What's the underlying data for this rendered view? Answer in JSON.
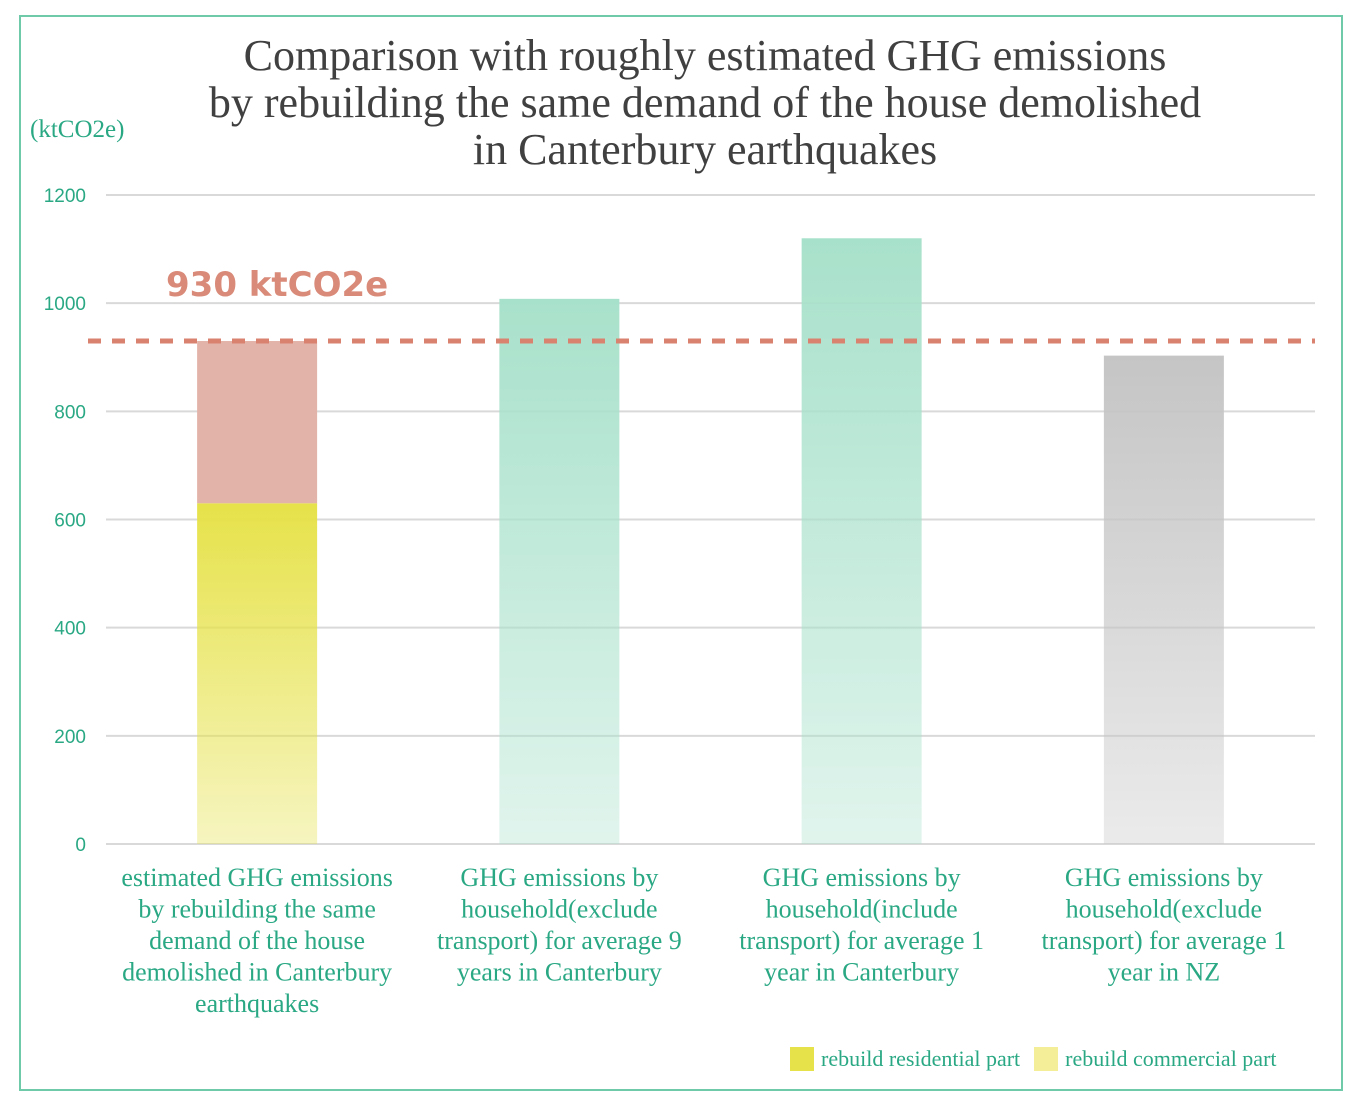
{
  "chart_data": {
    "type": "bar",
    "title_lines": [
      "Comparison with roughly estimated GHG emissions",
      "by rebuilding the same demand of the house demolished",
      "in Canterbury earthquakes"
    ],
    "ylabel": "(ktCO2e)",
    "ylim": [
      0,
      1200
    ],
    "yticks": [
      "0",
      "200",
      "400",
      "600",
      "800",
      "1000",
      "1200"
    ],
    "grid": true,
    "categories": [
      [
        "estimated GHG emissions",
        "by rebuilding the same",
        "demand of the house",
        "demolished in Canterbury",
        "earthquakes"
      ],
      [
        "GHG emissions by",
        "household(exclude",
        "transport) for average 9",
        "years in Canterbury"
      ],
      [
        "GHG emissions by",
        "household(include",
        "transport) for average 1",
        "year in Canterbury"
      ],
      [
        "GHG emissions by",
        "household(exclude",
        "transport) for average 1",
        "year in NZ"
      ]
    ],
    "series": [
      {
        "name": "rebuild residential part",
        "values": [
          630,
          null,
          null,
          null
        ],
        "color": "#e6e24a"
      },
      {
        "name": "rebuild commercial part",
        "values": [
          300,
          null,
          null,
          null
        ],
        "color": "#e2b3a8"
      },
      {
        "values": [
          null,
          1008,
          1120,
          903
        ],
        "colors": [
          null,
          "#a8e1cb",
          "#a8e1cb",
          "#c5c5c5"
        ]
      }
    ],
    "reference_line": {
      "value": 930,
      "label": "930 ktCO2e",
      "style": "dashed",
      "color": "#d9826f"
    },
    "legend": {
      "position": "bottom-right",
      "items": [
        {
          "label": "rebuild residential part",
          "color": "#e6e24a"
        },
        {
          "label": "rebuild commercial part",
          "color": "#f4ee99"
        }
      ]
    }
  }
}
